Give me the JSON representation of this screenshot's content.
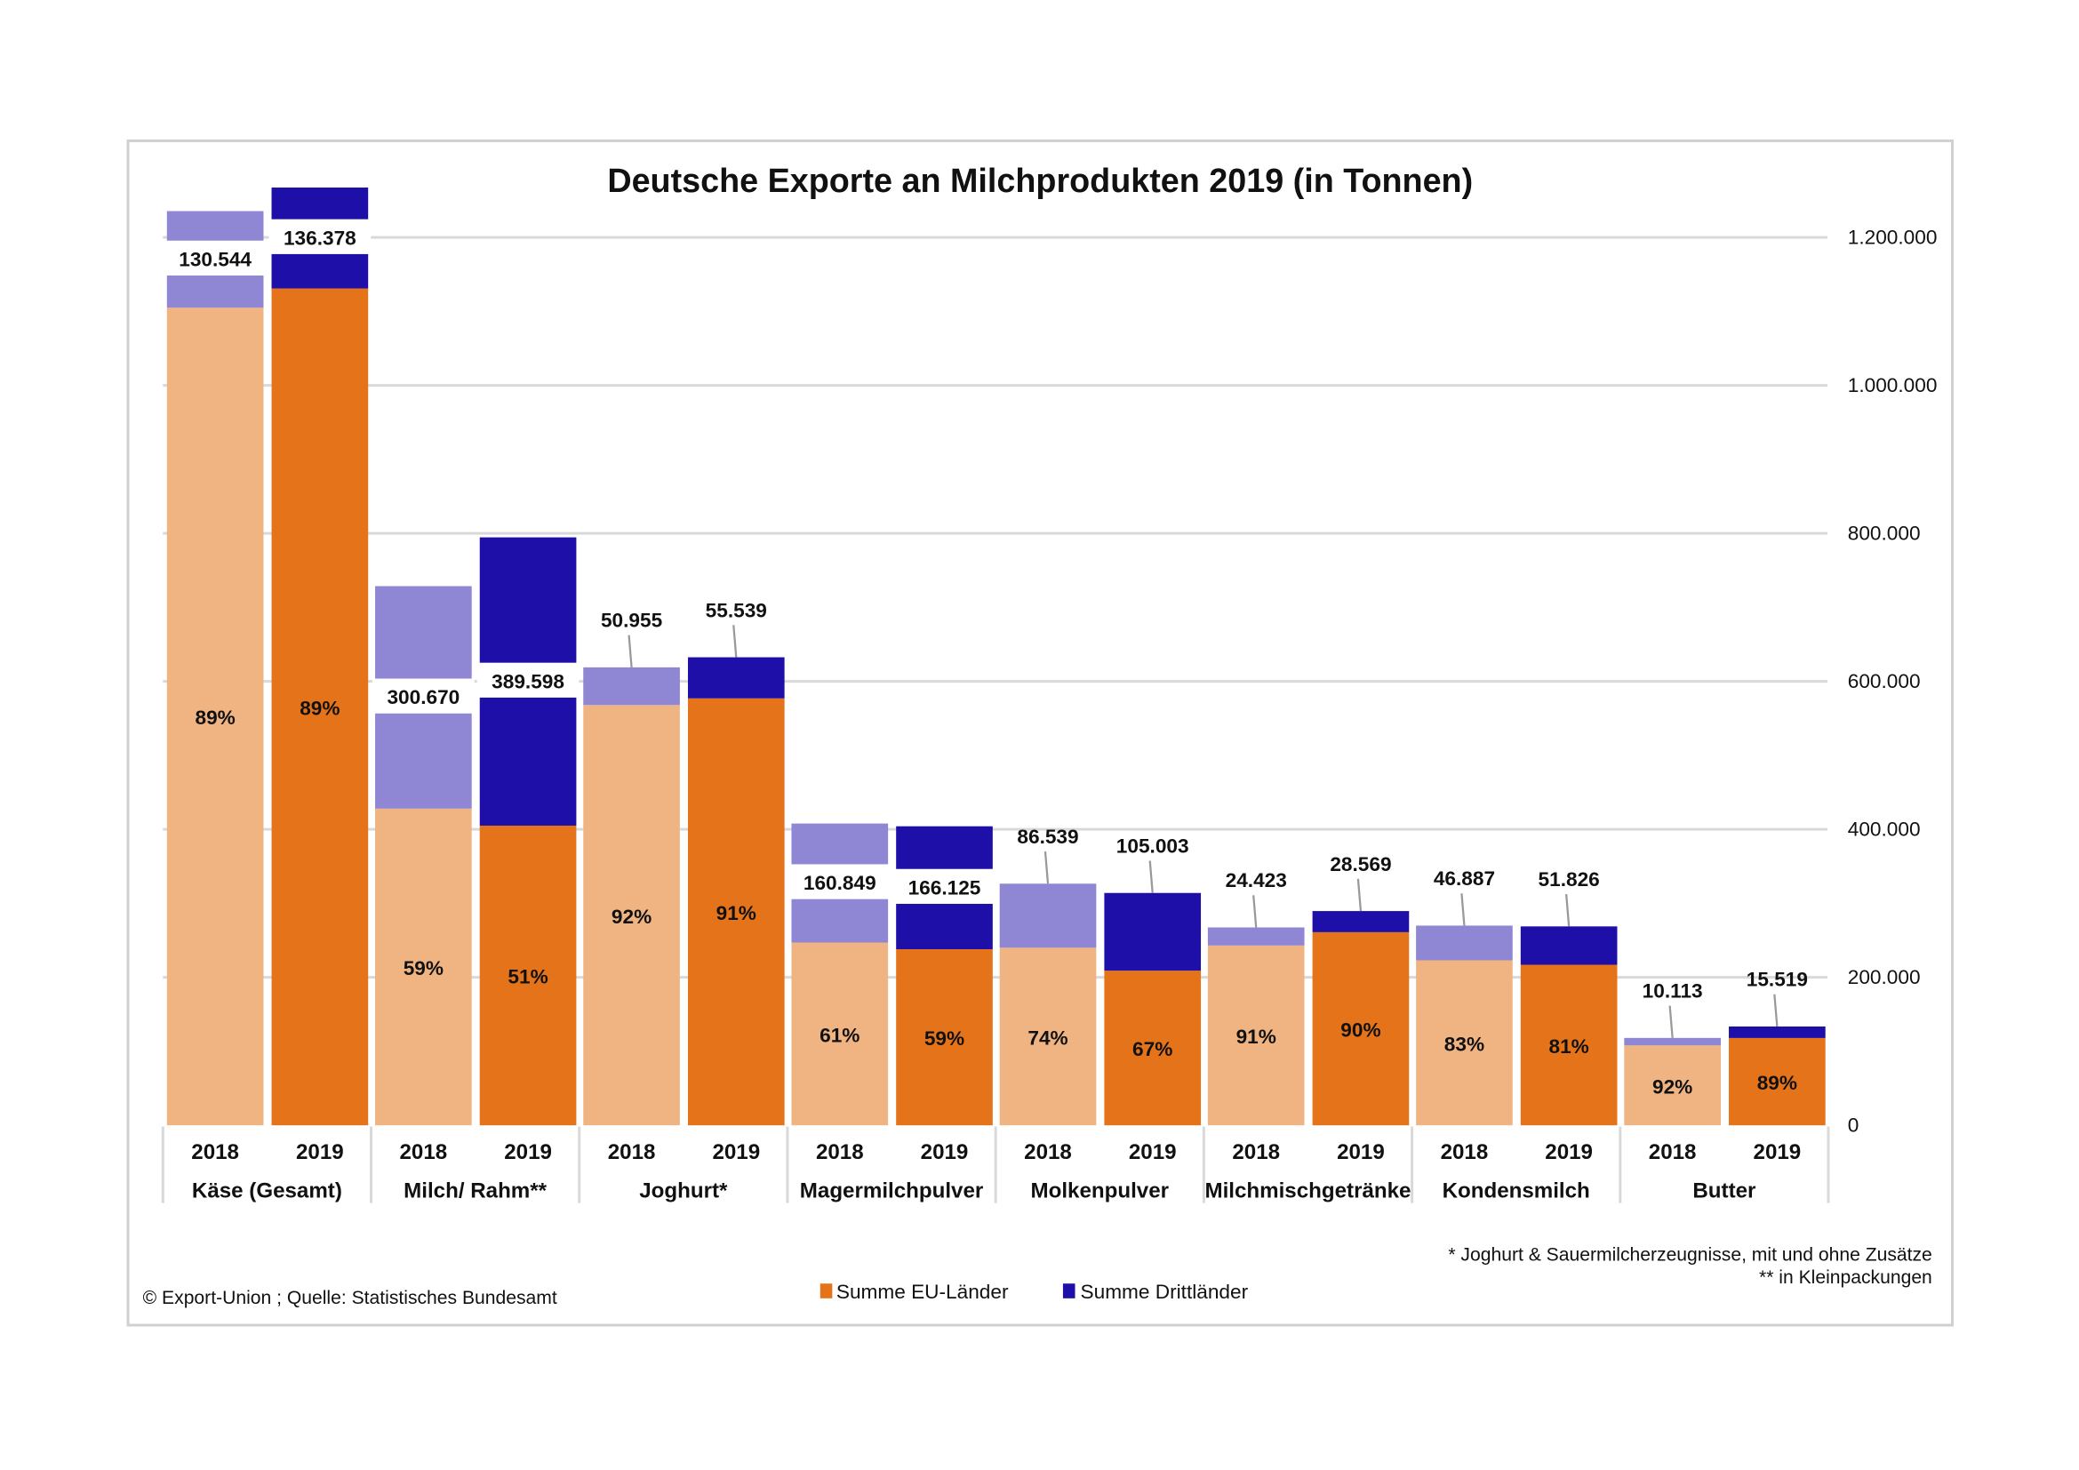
{
  "chart_data": {
    "type": "bar",
    "stacked": true,
    "title": "Deutsche Exporte an Milchprodukten 2019 (in Tonnen)",
    "ylim": [
      0,
      1200000
    ],
    "yticks": [
      "0",
      "200.000",
      "400.000",
      "600.000",
      "800.000",
      "1.000.000",
      "1.200.000"
    ],
    "ytick_values": [
      0,
      200000,
      400000,
      600000,
      800000,
      1000000,
      1200000
    ],
    "y_axis_side": "right",
    "grid": true,
    "legend_position": "bottom",
    "series": [
      {
        "name": "Summe EU-Länder",
        "color_2019": "#E5731A",
        "color_2018": "#F0B482"
      },
      {
        "name": "Summe Drittländer",
        "color_2019": "#1E0FA8",
        "color_2018": "#8F87D4"
      }
    ],
    "groups": [
      {
        "category": "Käse (Gesamt)",
        "bars": [
          {
            "year": "2018",
            "eu": 1105000,
            "third": 130544,
            "third_label": "130.544",
            "pct": "89%"
          },
          {
            "year": "2019",
            "eu": 1131000,
            "third": 136378,
            "third_label": "136.378",
            "pct": "89%"
          }
        ]
      },
      {
        "category": "Milch/ Rahm**",
        "bars": [
          {
            "year": "2018",
            "eu": 428000,
            "third": 300670,
            "third_label": "300.670",
            "pct": "59%"
          },
          {
            "year": "2019",
            "eu": 405000,
            "third": 389598,
            "third_label": "389.598",
            "pct": "51%"
          }
        ]
      },
      {
        "category": "Joghurt*",
        "bars": [
          {
            "year": "2018",
            "eu": 568000,
            "third": 50955,
            "third_label": "50.955",
            "pct": "92%"
          },
          {
            "year": "2019",
            "eu": 577000,
            "third": 55539,
            "third_label": "55.539",
            "pct": "91%"
          }
        ]
      },
      {
        "category": "Magermilchpulver",
        "bars": [
          {
            "year": "2018",
            "eu": 247000,
            "third": 160849,
            "third_label": "160.849",
            "pct": "61%"
          },
          {
            "year": "2019",
            "eu": 238000,
            "third": 166125,
            "third_label": "166.125",
            "pct": "59%"
          }
        ]
      },
      {
        "category": "Molkenpulver",
        "bars": [
          {
            "year": "2018",
            "eu": 240000,
            "third": 86539,
            "third_label": "86.539",
            "pct": "74%"
          },
          {
            "year": "2019",
            "eu": 209000,
            "third": 105003,
            "third_label": "105.003",
            "pct": "67%"
          }
        ]
      },
      {
        "category": "Milchmischgetränke",
        "bars": [
          {
            "year": "2018",
            "eu": 243000,
            "third": 24423,
            "third_label": "24.423",
            "pct": "91%"
          },
          {
            "year": "2019",
            "eu": 261000,
            "third": 28569,
            "third_label": "28.569",
            "pct": "90%"
          }
        ]
      },
      {
        "category": "Kondensmilch",
        "bars": [
          {
            "year": "2018",
            "eu": 223000,
            "third": 46887,
            "third_label": "46.887",
            "pct": "83%"
          },
          {
            "year": "2019",
            "eu": 217000,
            "third": 51826,
            "third_label": "51.826",
            "pct": "81%"
          }
        ]
      },
      {
        "category": "Butter",
        "bars": [
          {
            "year": "2018",
            "eu": 108000,
            "third": 10113,
            "third_label": "10.113",
            "pct": "92%"
          },
          {
            "year": "2019",
            "eu": 118000,
            "third": 15519,
            "third_label": "15.519",
            "pct": "89%"
          }
        ]
      }
    ],
    "footnotes": [
      "* Joghurt & Sauermilcherzeugnisse, mit und ohne Zusätze",
      "** in Kleinpackungen"
    ],
    "source": "© Export-Union ; Quelle: Statistisches Bundesamt"
  }
}
